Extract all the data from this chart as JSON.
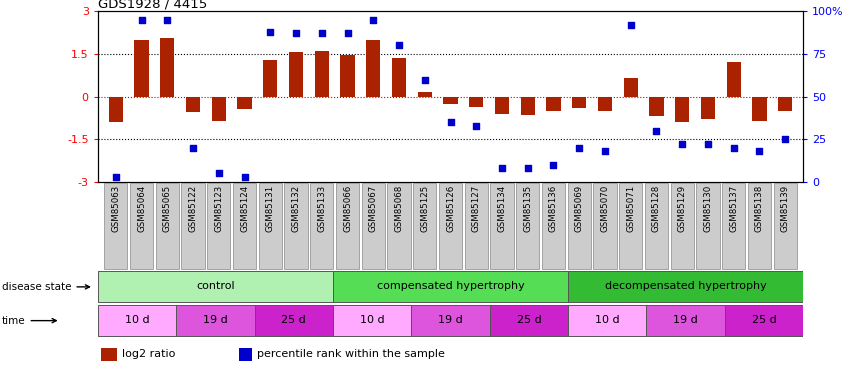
{
  "title": "GDS1928 / 4415",
  "samples": [
    "GSM85063",
    "GSM85064",
    "GSM85065",
    "GSM85122",
    "GSM85123",
    "GSM85124",
    "GSM85131",
    "GSM85132",
    "GSM85133",
    "GSM85066",
    "GSM85067",
    "GSM85068",
    "GSM85125",
    "GSM85126",
    "GSM85127",
    "GSM85134",
    "GSM85135",
    "GSM85136",
    "GSM85069",
    "GSM85070",
    "GSM85071",
    "GSM85128",
    "GSM85129",
    "GSM85130",
    "GSM85137",
    "GSM85138",
    "GSM85139"
  ],
  "log2_ratio": [
    -0.9,
    2.0,
    2.05,
    -0.55,
    -0.85,
    -0.45,
    1.3,
    1.55,
    1.6,
    1.45,
    2.0,
    1.35,
    0.15,
    -0.25,
    -0.35,
    -0.6,
    -0.65,
    -0.5,
    -0.4,
    -0.5,
    0.65,
    -0.7,
    -0.9,
    -0.8,
    1.2,
    -0.85,
    -0.5
  ],
  "percentile": [
    3,
    95,
    95,
    20,
    5,
    3,
    88,
    87,
    87,
    87,
    95,
    80,
    60,
    35,
    33,
    8,
    8,
    10,
    20,
    18,
    92,
    30,
    22,
    22,
    20,
    18,
    25
  ],
  "disease_state_groups": [
    {
      "label": "control",
      "start": 0,
      "end": 9,
      "color": "#b0f0b0"
    },
    {
      "label": "compensated hypertrophy",
      "start": 9,
      "end": 18,
      "color": "#55dd55"
    },
    {
      "label": "decompensated hypertrophy",
      "start": 18,
      "end": 27,
      "color": "#33bb33"
    }
  ],
  "time_groups": [
    {
      "label": "10 d",
      "start": 0,
      "end": 3,
      "color": "#ffaaff"
    },
    {
      "label": "19 d",
      "start": 3,
      "end": 6,
      "color": "#dd55dd"
    },
    {
      "label": "25 d",
      "start": 6,
      "end": 9,
      "color": "#cc22cc"
    },
    {
      "label": "10 d",
      "start": 9,
      "end": 12,
      "color": "#ffaaff"
    },
    {
      "label": "19 d",
      "start": 12,
      "end": 15,
      "color": "#dd55dd"
    },
    {
      "label": "25 d",
      "start": 15,
      "end": 18,
      "color": "#cc22cc"
    },
    {
      "label": "10 d",
      "start": 18,
      "end": 21,
      "color": "#ffaaff"
    },
    {
      "label": "19 d",
      "start": 21,
      "end": 24,
      "color": "#dd55dd"
    },
    {
      "label": "25 d",
      "start": 24,
      "end": 27,
      "color": "#cc22cc"
    }
  ],
  "bar_color": "#aa2200",
  "dot_color": "#0000cc",
  "ylim": [
    -3,
    3
  ],
  "y2lim": [
    0,
    100
  ],
  "yticks": [
    -3,
    -1.5,
    0,
    1.5,
    3
  ],
  "y2ticks": [
    0,
    25,
    50,
    75,
    100
  ],
  "legend_red_label": "log2 ratio",
  "legend_blue_label": "percentile rank within the sample"
}
